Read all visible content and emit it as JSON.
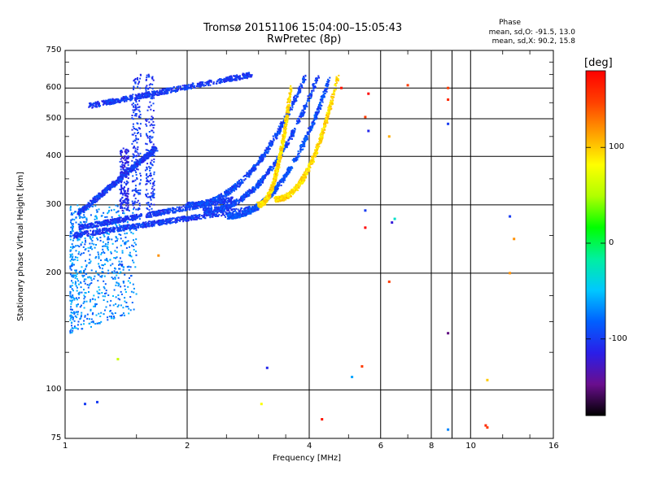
{
  "chart_data": {
    "type": "scatter",
    "title": "Tromsø 20151106 15:04:00–15:05:43",
    "subtitle": "RwPretec (8p)",
    "xlabel": "Frequency [MHz]",
    "ylabel": "Stationary phase Virtual Height [km]",
    "x_scale": "log",
    "y_scale": "log",
    "xlim": [
      1,
      16
    ],
    "ylim": [
      75,
      750
    ],
    "x_ticks": [
      "1",
      "2",
      "4",
      "6",
      "8",
      "10",
      "16"
    ],
    "y_ticks": [
      "75",
      "100",
      "200",
      "300",
      "400",
      "500",
      "600",
      "750"
    ],
    "grid": true,
    "phase_info": {
      "heading": "Phase",
      "line_o": "mean, sd,O: -91.5, 13.0",
      "line_x": "mean, sd,X: 90.2, 15.8"
    },
    "colorbar": {
      "label": "[deg]",
      "range": [
        -180,
        180
      ],
      "ticks": [
        "100",
        "0",
        "-100"
      ],
      "colormap": [
        "#000000",
        "#6a0e8e",
        "#2a1ee8",
        "#0060ff",
        "#00c8ff",
        "#00f0a0",
        "#00ff00",
        "#b0ff00",
        "#ffff00",
        "#ffa000",
        "#ff4000",
        "#ff0000"
      ]
    },
    "traces": [
      {
        "name_hidden": true,
        "phase": -100,
        "f_start": 1.08,
        "f_end": 1.68,
        "h_start": 285,
        "h_end": 420,
        "shape": "ray"
      },
      {
        "name_hidden": true,
        "phase": -100,
        "f_start": 1.08,
        "f_end": 2.6,
        "h_start": 262,
        "h_end": 310,
        "shape": "ray"
      },
      {
        "name_hidden": true,
        "phase": -100,
        "f_start": 1.05,
        "f_end": 3.0,
        "h_start": 250,
        "h_end": 295,
        "shape": "ray"
      },
      {
        "name_hidden": true,
        "phase": -100,
        "f_start": 1.15,
        "f_end": 2.9,
        "h_start": 540,
        "h_end": 650,
        "shape": "ray"
      },
      {
        "name_hidden": true,
        "phase": -95,
        "f_start": 2.0,
        "f_end": 3.9,
        "h_start": 300,
        "h_end": 640,
        "shape": "curve"
      },
      {
        "name_hidden": true,
        "phase": -95,
        "f_start": 2.2,
        "f_end": 4.2,
        "h_start": 290,
        "h_end": 640,
        "shape": "curve"
      },
      {
        "name_hidden": true,
        "phase": -90,
        "f_start": 2.5,
        "f_end": 4.5,
        "h_start": 280,
        "h_end": 640,
        "shape": "curve"
      },
      {
        "name_hidden": true,
        "phase": 95,
        "f_start": 3.0,
        "f_end": 3.6,
        "h_start": 300,
        "h_end": 600,
        "shape": "curve"
      },
      {
        "name_hidden": true,
        "phase": 95,
        "f_start": 3.3,
        "f_end": 4.7,
        "h_start": 310,
        "h_end": 640,
        "shape": "curve"
      }
    ],
    "vertical_strips": [
      {
        "phase": -100,
        "f": 1.5,
        "h_start": 290,
        "h_end": 650
      },
      {
        "phase": -100,
        "f": 1.62,
        "h_start": 290,
        "h_end": 650
      },
      {
        "phase": -110,
        "f": 1.4,
        "h_start": 290,
        "h_end": 420
      }
    ],
    "low_region": {
      "phase": -70,
      "f_start": 1.03,
      "f_end": 1.5,
      "h_start": 140,
      "h_end": 300
    },
    "scattered_points": [
      {
        "f": 1.12,
        "h": 92,
        "phase": -100
      },
      {
        "f": 1.2,
        "h": 93,
        "phase": -100
      },
      {
        "f": 3.05,
        "h": 92,
        "phase": 80
      },
      {
        "f": 4.3,
        "h": 84,
        "phase": 170
      },
      {
        "f": 4.8,
        "h": 600,
        "phase": 170
      },
      {
        "f": 5.6,
        "h": 580,
        "phase": 180
      },
      {
        "f": 5.5,
        "h": 505,
        "phase": 150
      },
      {
        "f": 5.6,
        "h": 465,
        "phase": -110
      },
      {
        "f": 5.5,
        "h": 290,
        "phase": -100
      },
      {
        "f": 5.5,
        "h": 262,
        "phase": 180
      },
      {
        "f": 5.4,
        "h": 115,
        "phase": 150
      },
      {
        "f": 5.1,
        "h": 108,
        "phase": -60
      },
      {
        "f": 6.3,
        "h": 450,
        "phase": 110
      },
      {
        "f": 6.3,
        "h": 190,
        "phase": 150
      },
      {
        "f": 6.5,
        "h": 276,
        "phase": -30
      },
      {
        "f": 6.4,
        "h": 270,
        "phase": -120
      },
      {
        "f": 7.0,
        "h": 610,
        "phase": 150
      },
      {
        "f": 8.8,
        "h": 600,
        "phase": 150
      },
      {
        "f": 8.8,
        "h": 560,
        "phase": 160
      },
      {
        "f": 8.8,
        "h": 485,
        "phase": -100
      },
      {
        "f": 8.8,
        "h": 140,
        "phase": -150
      },
      {
        "f": 8.8,
        "h": 79,
        "phase": -70
      },
      {
        "f": 10.9,
        "h": 81,
        "phase": 160
      },
      {
        "f": 11.0,
        "h": 80,
        "phase": 150
      },
      {
        "f": 11.0,
        "h": 106,
        "phase": 100
      },
      {
        "f": 12.5,
        "h": 280,
        "phase": -100
      },
      {
        "f": 12.8,
        "h": 245,
        "phase": 120
      },
      {
        "f": 12.5,
        "h": 200,
        "phase": 120
      },
      {
        "f": 1.35,
        "h": 120,
        "phase": 60
      },
      {
        "f": 1.7,
        "h": 222,
        "phase": 120
      },
      {
        "f": 1.38,
        "h": 210,
        "phase": -100
      },
      {
        "f": 3.15,
        "h": 114,
        "phase": -110
      }
    ]
  }
}
